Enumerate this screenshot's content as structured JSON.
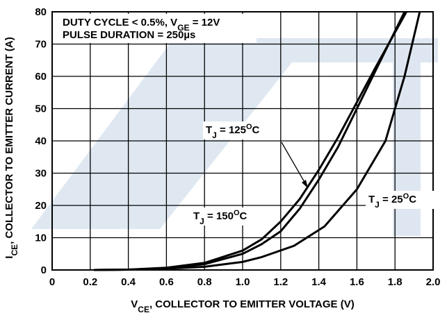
{
  "chart_data": {
    "type": "line",
    "annotations": [
      [
        "DUTY CYCLE < 0.5%, V",
        "GE",
        " = 12V"
      ],
      [
        "PULSE DURATION = 250µs"
      ]
    ],
    "xlabel": [
      "V",
      "CE",
      ", COLLECTOR TO EMITTER VOLTAGE (V)"
    ],
    "ylabel": [
      "I",
      "CE",
      ", COLLECTOR TO EMITTER CURRENT (A)"
    ],
    "xlim": [
      0,
      2
    ],
    "ylim": [
      0,
      80
    ],
    "xticks": [
      0,
      0.2,
      0.4,
      0.6,
      0.8,
      {
        "value": 1,
        "label": "1.0"
      },
      1.2,
      1.4,
      1.6,
      1.8,
      {
        "value": 2,
        "label": "2.0"
      }
    ],
    "yticks": [
      0,
      10,
      20,
      30,
      40,
      50,
      60,
      70,
      80
    ],
    "grid": true,
    "series": [
      {
        "label": [
          "T",
          "J",
          " = 125",
          "O",
          "C"
        ],
        "color": "#000000",
        "x": [
          0.22,
          0.4,
          0.6,
          0.8,
          1.0,
          1.1,
          1.2,
          1.3,
          1.4,
          1.5,
          1.6,
          1.7,
          1.85
        ],
        "values": [
          0,
          0.1,
          0.6,
          1.8,
          5,
          8,
          12,
          19,
          28,
          38,
          50,
          62,
          80
        ]
      },
      {
        "label": [
          "T",
          "J",
          " = 150",
          "O",
          "C"
        ],
        "color": "#000000",
        "x": [
          0.22,
          0.4,
          0.6,
          0.8,
          1.0,
          1.1,
          1.2,
          1.3,
          1.4,
          1.5,
          1.6,
          1.7,
          1.86
        ],
        "values": [
          0,
          0.1,
          0.7,
          2.2,
          6,
          9.5,
          15,
          22,
          31,
          41,
          52,
          63,
          80
        ]
      },
      {
        "label": [
          "T",
          "J",
          " = 25",
          "O",
          "C"
        ],
        "color": "#000000",
        "x": [
          0.22,
          0.4,
          0.6,
          0.8,
          1.0,
          1.1,
          1.27,
          1.43,
          1.6,
          1.75,
          1.85,
          1.93
        ],
        "values": [
          0,
          0.1,
          0.4,
          1,
          2.5,
          4,
          7.5,
          13.5,
          25,
          40,
          60,
          80
        ]
      }
    ]
  }
}
